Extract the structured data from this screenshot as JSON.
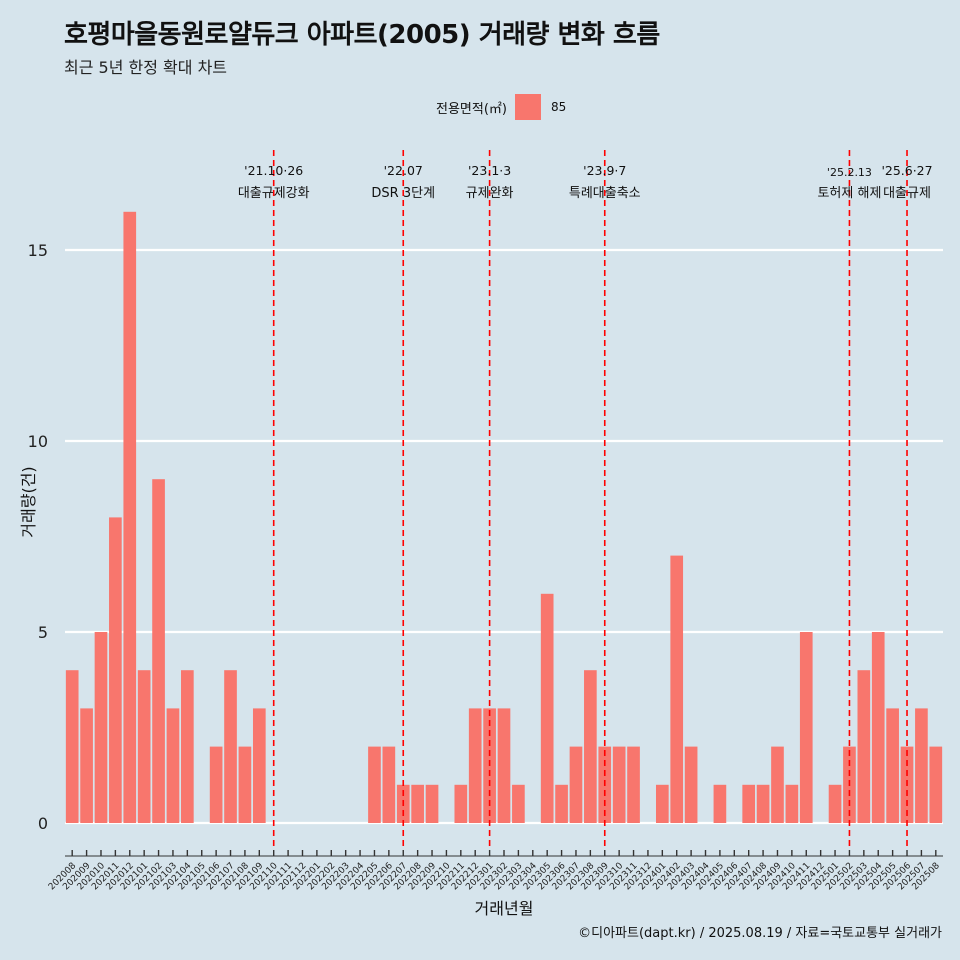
{
  "title": "호평마을동원로얄듀크 아파트(2005) 거래량 변화 흐름",
  "subtitle": "최근 5년 한정 확대 차트",
  "legend": {
    "title": "전용면적(㎡)",
    "items": [
      "85"
    ]
  },
  "caption": "©디아파트(dapt.kr) / 2025.08.19 / 자료=국토교통부 실거래가",
  "colors": {
    "bar": "#f8766d",
    "event_line": "#ff0000",
    "background": "#d6e4ec",
    "grid": "#ffffff"
  },
  "chart_data": {
    "type": "bar",
    "xlabel": "거래년월",
    "ylabel": "거래량(건)",
    "ylim": [
      0,
      16.5
    ],
    "yticks": [
      0,
      5,
      10,
      15
    ],
    "grid": true,
    "legend_position": "top",
    "categories": [
      "202008",
      "202009",
      "202010",
      "202011",
      "202012",
      "202101",
      "202102",
      "202103",
      "202104",
      "202105",
      "202106",
      "202107",
      "202108",
      "202109",
      "202110",
      "202111",
      "202112",
      "202201",
      "202202",
      "202203",
      "202204",
      "202205",
      "202206",
      "202207",
      "202208",
      "202209",
      "202210",
      "202211",
      "202212",
      "202301",
      "202302",
      "202303",
      "202304",
      "202305",
      "202306",
      "202307",
      "202308",
      "202309",
      "202310",
      "202311",
      "202312",
      "202401",
      "202402",
      "202403",
      "202404",
      "202405",
      "202406",
      "202407",
      "202408",
      "202409",
      "202410",
      "202411",
      "202412",
      "202501",
      "202502",
      "202503",
      "202504",
      "202505",
      "202506",
      "202507",
      "202508"
    ],
    "series": [
      {
        "name": "85",
        "values": [
          4,
          3,
          5,
          8,
          16,
          4,
          9,
          3,
          4,
          0,
          2,
          4,
          2,
          3,
          0,
          0,
          0,
          0,
          0,
          0,
          0,
          2,
          2,
          1,
          1,
          1,
          0,
          1,
          3,
          3,
          3,
          1,
          0,
          6,
          1,
          2,
          4,
          2,
          2,
          2,
          0,
          1,
          7,
          2,
          0,
          1,
          0,
          1,
          1,
          2,
          1,
          5,
          0,
          1,
          2,
          4,
          5,
          3,
          2,
          3,
          2
        ]
      }
    ],
    "annotations": [
      {
        "date": "'21.10·26",
        "label": "대출규제강화",
        "category": "202110"
      },
      {
        "date": "'22.07",
        "label": "DSR 3단계",
        "category": "202207"
      },
      {
        "date": "'23.1·3",
        "label": "규제완화",
        "category": "202301"
      },
      {
        "date": "'23.9·7",
        "label": "특례대출축소",
        "category": "202309"
      },
      {
        "date": "'25.2.13",
        "label": "토허제 해제",
        "category": "202502"
      },
      {
        "date": "'25.6·27",
        "label": "대출규제",
        "category": "202506"
      }
    ]
  }
}
